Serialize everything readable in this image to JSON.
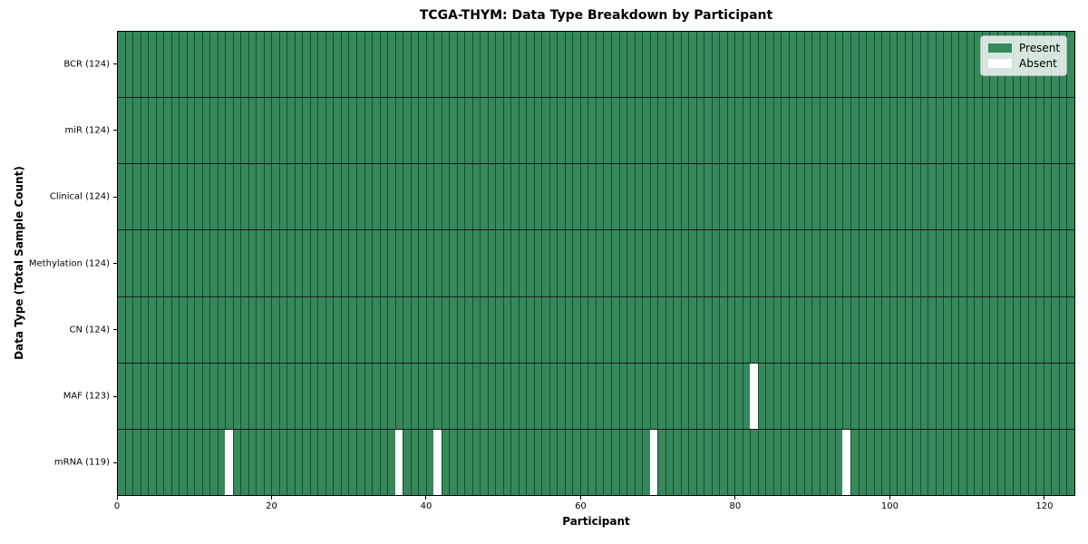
{
  "chart_data": {
    "type": "heatmap",
    "title": "TCGA-THYM: Data Type Breakdown by Participant",
    "xlabel": "Participant",
    "ylabel": "Data Type (Total Sample Count)",
    "n_participants": 124,
    "x_range": [
      0,
      124
    ],
    "x_ticks": [
      0,
      20,
      40,
      60,
      80,
      100,
      120
    ],
    "rows": [
      {
        "label": "BCR (124)",
        "present_count": 124,
        "absent": []
      },
      {
        "label": "miR (124)",
        "present_count": 124,
        "absent": []
      },
      {
        "label": "Clinical (124)",
        "present_count": 124,
        "absent": []
      },
      {
        "label": "Methylation (124)",
        "present_count": 124,
        "absent": []
      },
      {
        "label": "CN (124)",
        "present_count": 124,
        "absent": []
      },
      {
        "label": "MAF (123)",
        "present_count": 123,
        "absent": [
          82
        ]
      },
      {
        "label": "mRNA (119)",
        "present_count": 119,
        "absent": [
          14,
          36,
          41,
          69,
          94
        ]
      }
    ],
    "legend": [
      {
        "label": "Present",
        "color": "#35895b"
      },
      {
        "label": "Absent",
        "color": "#ffffff"
      }
    ],
    "legend_position": "upper right",
    "colors": {
      "present": "#35895b",
      "absent": "#ffffff",
      "cell_edge": "rgba(0,0,0,0.45)",
      "row_line": "#1a1a1a",
      "spine": "#000000",
      "legend_bg": "rgba(255,255,255,0.8)",
      "legend_border": "#bbbbbb",
      "background": "#ffffff"
    }
  }
}
